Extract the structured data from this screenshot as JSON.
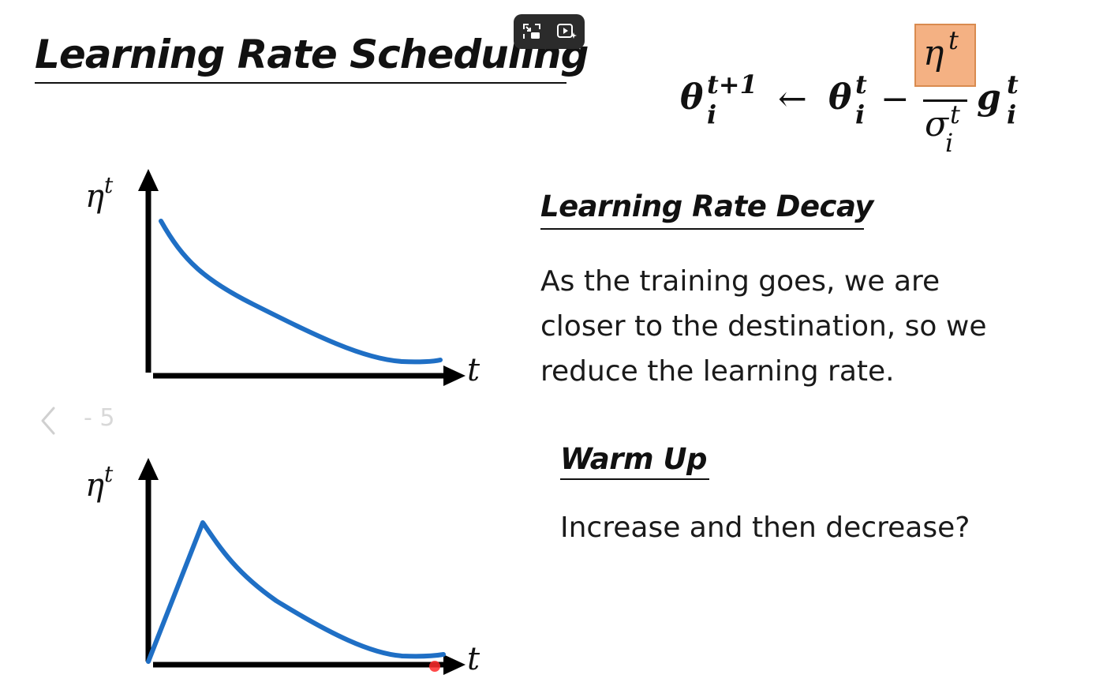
{
  "slide": {
    "title": "Learning Rate Scheduling"
  },
  "formula": {
    "theta": "θ",
    "arrow": "←",
    "minus": "−",
    "eta": "η",
    "sigma": "σ",
    "g": "g",
    "sup_t_plus_1": "t+1",
    "sup_t": "t",
    "sub_i": "i"
  },
  "decay": {
    "heading": "Learning Rate Decay",
    "lines": [
      "As the training goes, we are",
      "closer to the destination, so we",
      "reduce the learning rate."
    ]
  },
  "warmup": {
    "heading": "Warm Up",
    "text": "Increase and then decrease?"
  },
  "graphs": {
    "y_label": "η",
    "y_label_sup": "t",
    "x_label": "t",
    "curve_color": "#1f6fc5"
  },
  "navigation": {
    "slide_indicator": "- 5"
  },
  "icons": {
    "overlay": [
      "picture-in-picture-icon",
      "video-sparkle-icon"
    ],
    "nav": "chevron-left-icon"
  }
}
